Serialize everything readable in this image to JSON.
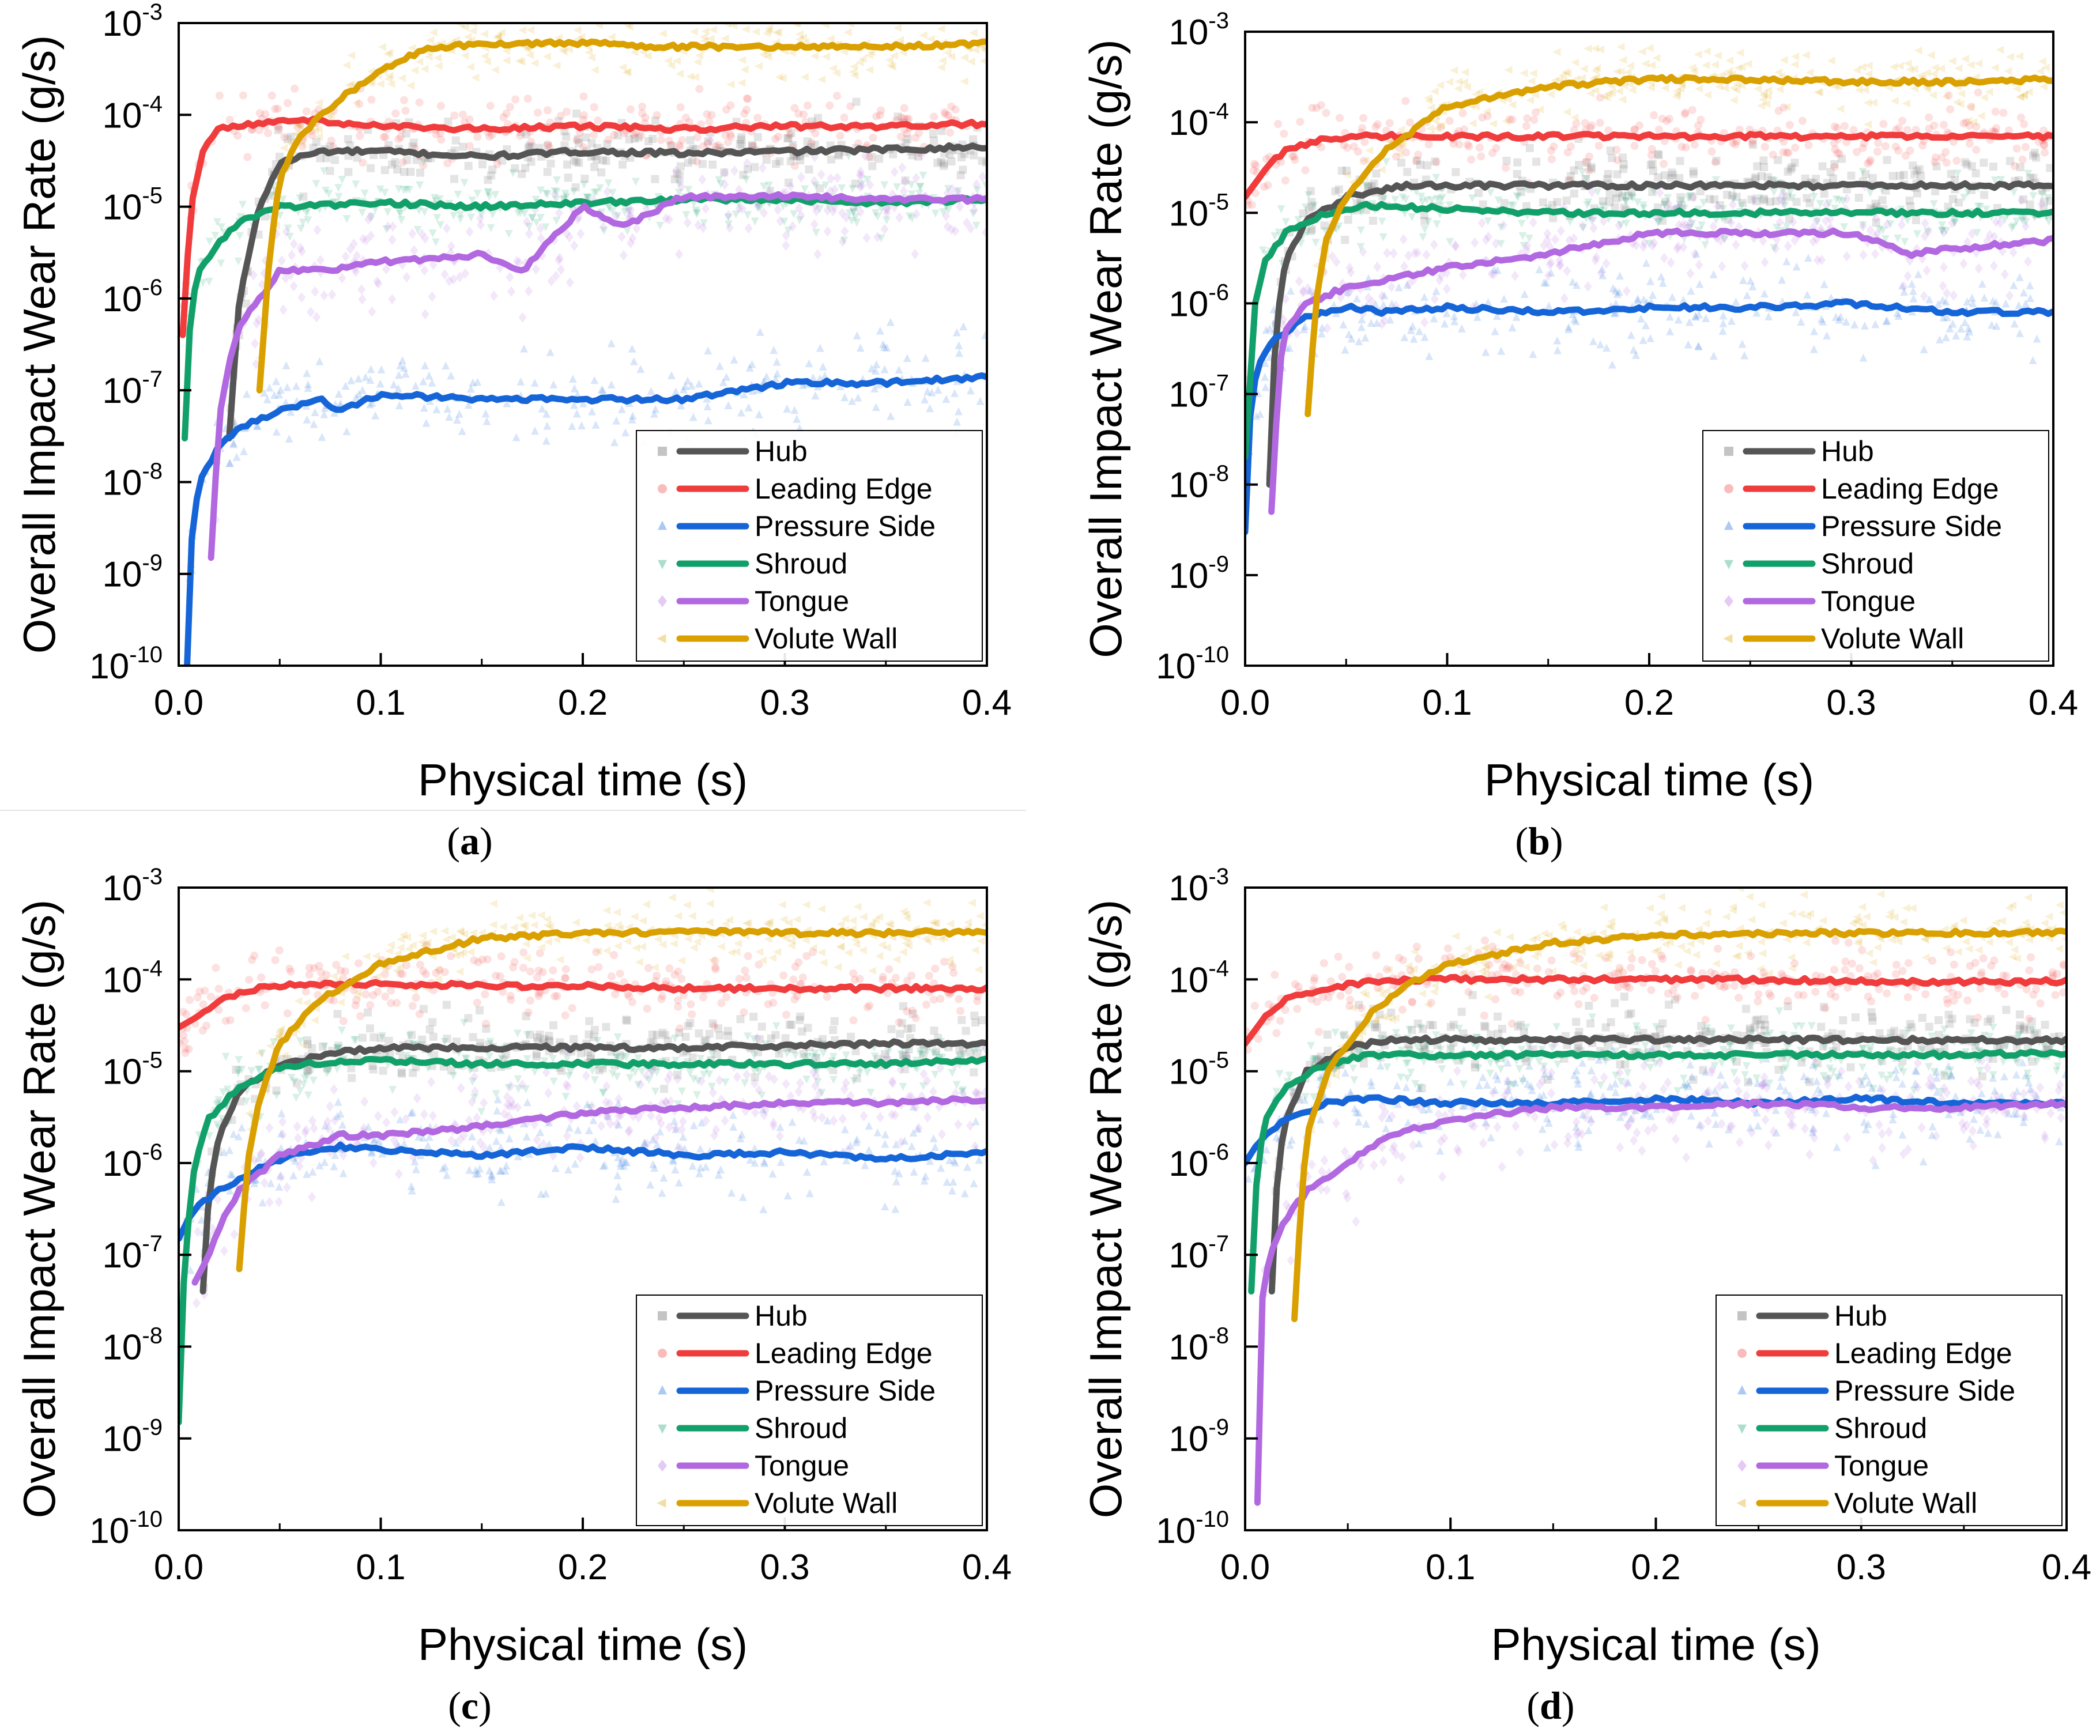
{
  "figure": {
    "x_axis_label": "Physical time (s)",
    "y_axis_label": "Overall Impact Wear Rate (g/s)",
    "x_ticks": [
      "0.0",
      "0.1",
      "0.2",
      "0.3",
      "0.4"
    ],
    "y_ticks": [
      -10,
      -9,
      -8,
      -7,
      -6,
      -5,
      -4,
      -3
    ],
    "y_tick_base": "10"
  },
  "series_style": [
    {
      "name": "Hub",
      "color": "#555555",
      "marker": "square"
    },
    {
      "name": "Leading Edge",
      "color": "#f03c3c",
      "marker": "circle"
    },
    {
      "name": "Pressure Side",
      "color": "#1565d8",
      "marker": "triangle-up"
    },
    {
      "name": "Shroud",
      "color": "#12a06a",
      "marker": "triangle-down"
    },
    {
      "name": "Tongue",
      "color": "#b268e0",
      "marker": "diamond"
    },
    {
      "name": "Volute Wall",
      "color": "#d9a000",
      "marker": "triangle-left"
    }
  ],
  "chart_data": [
    {
      "panel": "a",
      "type": "line",
      "xlabel": "Physical time (s)",
      "ylabel": "Overall Impact Wear Rate (g/s)",
      "xlim": [
        0,
        0.4
      ],
      "ylim": [
        1e-10,
        0.001
      ],
      "yscale": "log",
      "legend_position": "bottom-right",
      "scatter_overlay": true,
      "series": [
        {
          "name": "Hub",
          "x": [
            0.025,
            0.03,
            0.04,
            0.05,
            0.07,
            0.1,
            0.15,
            0.2,
            0.25,
            0.3,
            0.35,
            0.4
          ],
          "values": [
            3e-08,
            1e-06,
            1e-05,
            3e-05,
            4e-05,
            4e-05,
            3.5e-05,
            4e-05,
            3.8e-05,
            4e-05,
            4.2e-05,
            4.5e-05
          ]
        },
        {
          "name": "Leading Edge",
          "x": [
            0.002,
            0.006,
            0.012,
            0.02,
            0.04,
            0.06,
            0.08,
            0.1,
            0.15,
            0.2,
            0.25,
            0.3,
            0.35,
            0.4
          ],
          "values": [
            4e-07,
            1e-05,
            4e-05,
            7e-05,
            8e-05,
            9e-05,
            8e-05,
            7.5e-05,
            7e-05,
            7.5e-05,
            7e-05,
            7.5e-05,
            7.5e-05,
            8e-05
          ]
        },
        {
          "name": "Pressure Side",
          "x": [
            0.004,
            0.006,
            0.01,
            0.02,
            0.03,
            0.05,
            0.07,
            0.08,
            0.1,
            0.15,
            0.2,
            0.25,
            0.3,
            0.35,
            0.4
          ],
          "values": [
            8e-11,
            2e-09,
            1e-08,
            2.5e-08,
            4e-08,
            6e-08,
            8e-08,
            6e-08,
            9e-08,
            8e-08,
            8e-08,
            8e-08,
            1.2e-07,
            1.2e-07,
            1.4e-07
          ]
        },
        {
          "name": "Shroud",
          "x": [
            0.003,
            0.006,
            0.01,
            0.02,
            0.03,
            0.05,
            0.1,
            0.15,
            0.2,
            0.25,
            0.3,
            0.35,
            0.4
          ],
          "values": [
            3e-08,
            8e-07,
            2e-06,
            4e-06,
            7e-06,
            1e-05,
            1.1e-05,
            1e-05,
            1.1e-05,
            1.2e-05,
            1.2e-05,
            1.1e-05,
            1.2e-05
          ]
        },
        {
          "name": "Tongue",
          "x": [
            0.016,
            0.02,
            0.025,
            0.03,
            0.04,
            0.05,
            0.07,
            0.1,
            0.15,
            0.17,
            0.2,
            0.22,
            0.25,
            0.3,
            0.35,
            0.4
          ],
          "values": [
            1.5e-09,
            5e-08,
            2e-07,
            5e-07,
            1e-06,
            2e-06,
            2e-06,
            2.5e-06,
            3e-06,
            2e-06,
            1e-05,
            6e-06,
            1.3e-05,
            1.3e-05,
            1.2e-05,
            1.2e-05
          ]
        },
        {
          "name": "Volute Wall",
          "x": [
            0.04,
            0.045,
            0.05,
            0.06,
            0.08,
            0.1,
            0.12,
            0.15,
            0.2,
            0.25,
            0.3,
            0.35,
            0.4
          ],
          "values": [
            1e-07,
            3e-06,
            2e-05,
            6e-05,
            0.00015,
            0.0003,
            0.0005,
            0.0006,
            0.0006,
            0.00055,
            0.00055,
            0.00055,
            0.0006
          ]
        }
      ]
    },
    {
      "panel": "b",
      "type": "line",
      "xlabel": "Physical time (s)",
      "ylabel": "Overall Impact Wear Rate (g/s)",
      "xlim": [
        0,
        0.4
      ],
      "ylim": [
        1e-10,
        0.001
      ],
      "yscale": "log",
      "legend_position": "bottom-right",
      "scatter_overlay": true,
      "series": [
        {
          "name": "Hub",
          "x": [
            0.012,
            0.015,
            0.02,
            0.03,
            0.05,
            0.08,
            0.1,
            0.15,
            0.2,
            0.25,
            0.3,
            0.35,
            0.4
          ],
          "values": [
            1e-08,
            5e-07,
            3e-06,
            8e-06,
            1.5e-05,
            2e-05,
            2e-05,
            2e-05,
            2e-05,
            2e-05,
            2e-05,
            2e-05,
            2e-05
          ]
        },
        {
          "name": "Leading Edge",
          "x": [
            0.0,
            0.01,
            0.02,
            0.04,
            0.06,
            0.1,
            0.15,
            0.2,
            0.25,
            0.3,
            0.35,
            0.4
          ],
          "values": [
            1.5e-05,
            3e-05,
            5e-05,
            6.5e-05,
            7e-05,
            7e-05,
            7e-05,
            7e-05,
            7e-05,
            7e-05,
            7e-05,
            7e-05
          ]
        },
        {
          "name": "Pressure Side",
          "x": [
            0.0,
            0.003,
            0.008,
            0.015,
            0.03,
            0.05,
            0.07,
            0.1,
            0.15,
            0.2,
            0.25,
            0.3,
            0.35,
            0.4
          ],
          "values": [
            3e-09,
            1e-07,
            2.5e-07,
            4e-07,
            7e-07,
            9e-07,
            8e-07,
            9e-07,
            8e-07,
            9e-07,
            9e-07,
            1e-06,
            8e-07,
            8e-07
          ]
        },
        {
          "name": "Shroud",
          "x": [
            0.0,
            0.005,
            0.01,
            0.02,
            0.04,
            0.06,
            0.1,
            0.15,
            0.2,
            0.25,
            0.3,
            0.35,
            0.4
          ],
          "values": [
            2e-08,
            1e-06,
            3e-06,
            6e-06,
            1e-05,
            1.2e-05,
            1.1e-05,
            1e-05,
            1e-05,
            1e-05,
            1e-05,
            1e-05,
            1e-05
          ]
        },
        {
          "name": "Tongue",
          "x": [
            0.013,
            0.017,
            0.02,
            0.03,
            0.05,
            0.08,
            0.1,
            0.15,
            0.2,
            0.25,
            0.3,
            0.33,
            0.35,
            0.4
          ],
          "values": [
            5e-09,
            2e-07,
            5e-07,
            1e-06,
            1.5e-06,
            2e-06,
            2.5e-06,
            3.5e-06,
            6e-06,
            6e-06,
            6e-06,
            3.5e-06,
            4e-06,
            5e-06
          ]
        },
        {
          "name": "Volute Wall",
          "x": [
            0.031,
            0.035,
            0.04,
            0.05,
            0.07,
            0.1,
            0.15,
            0.2,
            0.25,
            0.3,
            0.35,
            0.4
          ],
          "values": [
            6e-08,
            1e-06,
            5e-06,
            1.5e-05,
            5e-05,
            0.00015,
            0.00025,
            0.0003,
            0.0003,
            0.00028,
            0.00028,
            0.0003
          ]
        }
      ]
    },
    {
      "panel": "c",
      "type": "line",
      "xlabel": "Physical time (s)",
      "ylabel": "Overall Impact Wear Rate (g/s)",
      "xlim": [
        0,
        0.4
      ],
      "ylim": [
        1e-10,
        0.001
      ],
      "yscale": "log",
      "legend_position": "bottom-right",
      "scatter_overlay": true,
      "series": [
        {
          "name": "Hub",
          "x": [
            0.012,
            0.015,
            0.02,
            0.03,
            0.05,
            0.08,
            0.1,
            0.15,
            0.2,
            0.25,
            0.3,
            0.35,
            0.4
          ],
          "values": [
            4e-08,
            5e-07,
            2e-06,
            6e-06,
            1.2e-05,
            1.6e-05,
            1.8e-05,
            1.8e-05,
            1.8e-05,
            1.8e-05,
            1.9e-05,
            2e-05,
            2e-05
          ]
        },
        {
          "name": "Leading Edge",
          "x": [
            0.0,
            0.01,
            0.02,
            0.04,
            0.06,
            0.1,
            0.15,
            0.2,
            0.25,
            0.3,
            0.35,
            0.4
          ],
          "values": [
            3e-05,
            4e-05,
            6e-05,
            8e-05,
            9e-05,
            9e-05,
            8.5e-05,
            8.5e-05,
            8e-05,
            8e-05,
            8e-05,
            8e-05
          ]
        },
        {
          "name": "Pressure Side",
          "x": [
            0.0,
            0.005,
            0.01,
            0.02,
            0.04,
            0.06,
            0.08,
            0.1,
            0.15,
            0.2,
            0.25,
            0.3,
            0.35,
            0.4
          ],
          "values": [
            1.5e-07,
            2.5e-07,
            3.5e-07,
            5e-07,
            9e-07,
            1.3e-06,
            1.5e-06,
            1.4e-06,
            1.2e-06,
            1.5e-06,
            1.2e-06,
            1.3e-06,
            1.1e-06,
            1.3e-06
          ]
        },
        {
          "name": "Shroud",
          "x": [
            0.0,
            0.003,
            0.008,
            0.015,
            0.03,
            0.05,
            0.08,
            0.1,
            0.15,
            0.2,
            0.25,
            0.3,
            0.35,
            0.4
          ],
          "values": [
            1.5e-09,
            1e-07,
            1e-06,
            3e-06,
            7e-06,
            1.1e-05,
            1.3e-05,
            1.3e-05,
            1.2e-05,
            1.2e-05,
            1.2e-05,
            1.2e-05,
            1.2e-05,
            1.3e-05
          ]
        },
        {
          "name": "Tongue",
          "x": [
            0.008,
            0.015,
            0.02,
            0.03,
            0.05,
            0.08,
            0.1,
            0.15,
            0.2,
            0.25,
            0.3,
            0.35,
            0.4
          ],
          "values": [
            5e-08,
            1e-07,
            2e-07,
            5e-07,
            1.2e-06,
            2e-06,
            2e-06,
            2.5e-06,
            3.5e-06,
            4e-06,
            4.5e-06,
            4.5e-06,
            5e-06
          ]
        },
        {
          "name": "Volute Wall",
          "x": [
            0.03,
            0.034,
            0.04,
            0.05,
            0.07,
            0.1,
            0.15,
            0.2,
            0.25,
            0.3,
            0.35,
            0.4
          ],
          "values": [
            7e-08,
            1e-06,
            5e-06,
            2e-05,
            6e-05,
            0.00015,
            0.00028,
            0.00032,
            0.00033,
            0.00032,
            0.00032,
            0.00033
          ]
        }
      ]
    },
    {
      "panel": "d",
      "type": "line",
      "xlabel": "Physical time (s)",
      "ylabel": "Overall Impact Wear Rate (g/s)",
      "xlim": [
        0,
        0.4
      ],
      "ylim": [
        1e-10,
        0.001
      ],
      "yscale": "log",
      "legend_position": "bottom-right",
      "scatter_overlay": true,
      "series": [
        {
          "name": "Hub",
          "x": [
            0.013,
            0.016,
            0.02,
            0.03,
            0.05,
            0.07,
            0.1,
            0.15,
            0.2,
            0.25,
            0.3,
            0.35,
            0.4
          ],
          "values": [
            4e-08,
            1e-06,
            3e-06,
            1e-05,
            1.8e-05,
            2.2e-05,
            2.2e-05,
            2.2e-05,
            2.2e-05,
            2.2e-05,
            2.2e-05,
            2.2e-05,
            2.2e-05
          ]
        },
        {
          "name": "Leading Edge",
          "x": [
            0.0,
            0.01,
            0.02,
            0.04,
            0.06,
            0.1,
            0.15,
            0.2,
            0.25,
            0.3,
            0.35,
            0.4
          ],
          "values": [
            2e-05,
            4e-05,
            6e-05,
            8e-05,
            9.5e-05,
            0.0001,
            0.0001,
            0.0001,
            0.0001,
            9.5e-05,
            9.5e-05,
            9.5e-05
          ]
        },
        {
          "name": "Pressure Side",
          "x": [
            0.0,
            0.005,
            0.01,
            0.02,
            0.04,
            0.06,
            0.1,
            0.15,
            0.2,
            0.25,
            0.3,
            0.35,
            0.4
          ],
          "values": [
            1e-06,
            1.5e-06,
            2e-06,
            3e-06,
            4.5e-06,
            5e-06,
            4.5e-06,
            4.5e-06,
            5e-06,
            4.5e-06,
            5e-06,
            4.5e-06,
            4.5e-06
          ]
        },
        {
          "name": "Shroud",
          "x": [
            0.003,
            0.006,
            0.01,
            0.02,
            0.04,
            0.06,
            0.1,
            0.15,
            0.2,
            0.25,
            0.3,
            0.35,
            0.4
          ],
          "values": [
            4e-08,
            1e-06,
            3e-06,
            7e-06,
            1.2e-05,
            1.5e-05,
            1.5e-05,
            1.5e-05,
            1.5e-05,
            1.5e-05,
            1.5e-05,
            1.5e-05,
            1.6e-05
          ]
        },
        {
          "name": "Tongue",
          "x": [
            0.006,
            0.008,
            0.012,
            0.02,
            0.03,
            0.05,
            0.07,
            0.1,
            0.15,
            0.2,
            0.25,
            0.3,
            0.35,
            0.4
          ],
          "values": [
            2e-10,
            3e-08,
            1e-07,
            2.5e-07,
            5e-07,
            1e-06,
            2e-06,
            3e-06,
            4e-06,
            4e-06,
            4.5e-06,
            4e-06,
            4e-06,
            4.5e-06
          ]
        },
        {
          "name": "Volute Wall",
          "x": [
            0.024,
            0.027,
            0.03,
            0.04,
            0.06,
            0.08,
            0.1,
            0.15,
            0.2,
            0.25,
            0.3,
            0.35,
            0.4
          ],
          "values": [
            2e-08,
            3e-07,
            2e-06,
            1e-05,
            4e-05,
            9e-05,
            0.00015,
            0.00025,
            0.0003,
            0.00032,
            0.00032,
            0.00032,
            0.00033
          ]
        }
      ]
    }
  ],
  "captions": [
    {
      "label": "a"
    },
    {
      "label": "b"
    },
    {
      "label": "c"
    },
    {
      "label": "d"
    }
  ]
}
